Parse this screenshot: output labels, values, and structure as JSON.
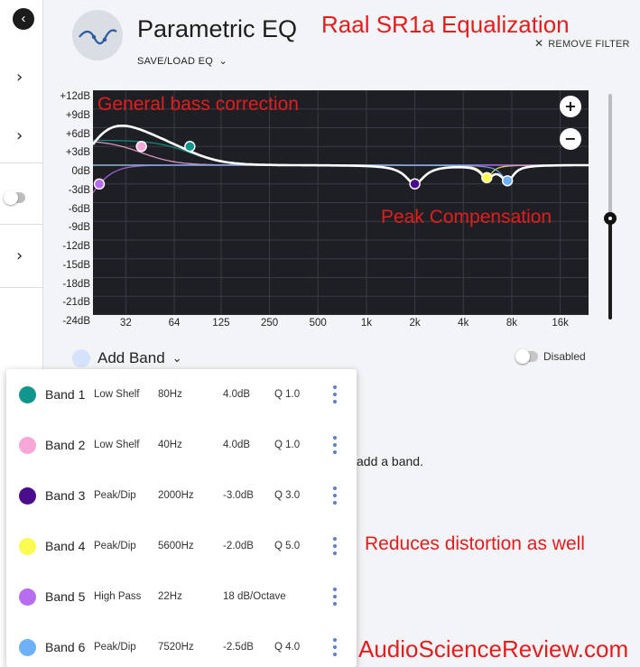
{
  "header": {
    "title": "Parametric EQ",
    "save_load_label": "SAVE/LOAD EQ",
    "remove_filter_label": "REMOVE FILTER"
  },
  "annotations": {
    "top_title": "Raal SR1a Equalization",
    "bass": "General bass correction",
    "peak": "Peak Compensation",
    "distortion": "Reduces distortion as well",
    "watermark": "AudioScienceReview.com"
  },
  "chart": {
    "y_ticks": [
      "+12dB",
      "+9dB",
      "+6dB",
      "+3dB",
      "0dB",
      "-3dB",
      "-6dB",
      "-9dB",
      "-12dB",
      "-15dB",
      "-18dB",
      "-21dB",
      "-24dB"
    ],
    "x_ticks": [
      "32",
      "64",
      "125",
      "250",
      "500",
      "1k",
      "2k",
      "4k",
      "8k",
      "16k"
    ],
    "zoom_in": "+",
    "zoom_out": "−"
  },
  "chart_data": {
    "type": "line",
    "x_scale": "log",
    "xlim": [
      20,
      24000
    ],
    "ylim": [
      -24,
      12
    ],
    "y_unit": "dB",
    "grid": true,
    "series": [
      {
        "name": "Band 1",
        "color": "#12958d",
        "filter": "Low Shelf",
        "freq": 80,
        "gain": 4.0,
        "q": 1.0
      },
      {
        "name": "Band 2",
        "color": "#f7a8d8",
        "filter": "Low Shelf",
        "freq": 40,
        "gain": 4.0,
        "q": 1.0
      },
      {
        "name": "Band 3",
        "color": "#4a0d8c",
        "filter": "Peak/Dip",
        "freq": 2000,
        "gain": -3.0,
        "q": 3.0
      },
      {
        "name": "Band 4",
        "color": "#fafa50",
        "filter": "Peak/Dip",
        "freq": 5600,
        "gain": -2.0,
        "q": 5.0
      },
      {
        "name": "Band 5",
        "color": "#b86cf0",
        "filter": "High Pass",
        "freq": 22,
        "slope_db_per_octave": 18
      },
      {
        "name": "Band 6",
        "color": "#6fb1f7",
        "filter": "Peak/Dip",
        "freq": 7520,
        "gain": -2.5,
        "q": 4.0
      }
    ]
  },
  "add_band": {
    "label": "Add Band"
  },
  "disabled_label": "Disabled",
  "hint_text": "add a band.",
  "bands": [
    {
      "name": "Band 1",
      "type": "Low Shelf",
      "freq": "80Hz",
      "gain": "4.0dB",
      "q": "Q 1.0",
      "color": "#12958d"
    },
    {
      "name": "Band 2",
      "type": "Low Shelf",
      "freq": "40Hz",
      "gain": "4.0dB",
      "q": "Q 1.0",
      "color": "#f7a8d8"
    },
    {
      "name": "Band 3",
      "type": "Peak/Dip",
      "freq": "2000Hz",
      "gain": "-3.0dB",
      "q": "Q 3.0",
      "color": "#4a0d8c"
    },
    {
      "name": "Band 4",
      "type": "Peak/Dip",
      "freq": "5600Hz",
      "gain": "-2.0dB",
      "q": "Q 5.0",
      "color": "#fafa50"
    },
    {
      "name": "Band 5",
      "type": "High Pass",
      "freq": "22Hz",
      "gain": "18 dB/Octave",
      "q": "",
      "color": "#b86cf0"
    },
    {
      "name": "Band 6",
      "type": "Peak/Dip",
      "freq": "7520Hz",
      "gain": "-2.5dB",
      "q": "Q 4.0",
      "color": "#6fb1f7"
    }
  ],
  "icons": {
    "back": "chevron-left-icon",
    "rail_items": "chevron-right-icon",
    "logo": "eq-wave-icon",
    "remove": "close-icon",
    "more": "more-vertical-icon"
  },
  "colors": {
    "accent": "#e41c1c",
    "curve": "#ffffff",
    "plot_bg": "#1e1f24"
  },
  "zoom_level": 0.45
}
